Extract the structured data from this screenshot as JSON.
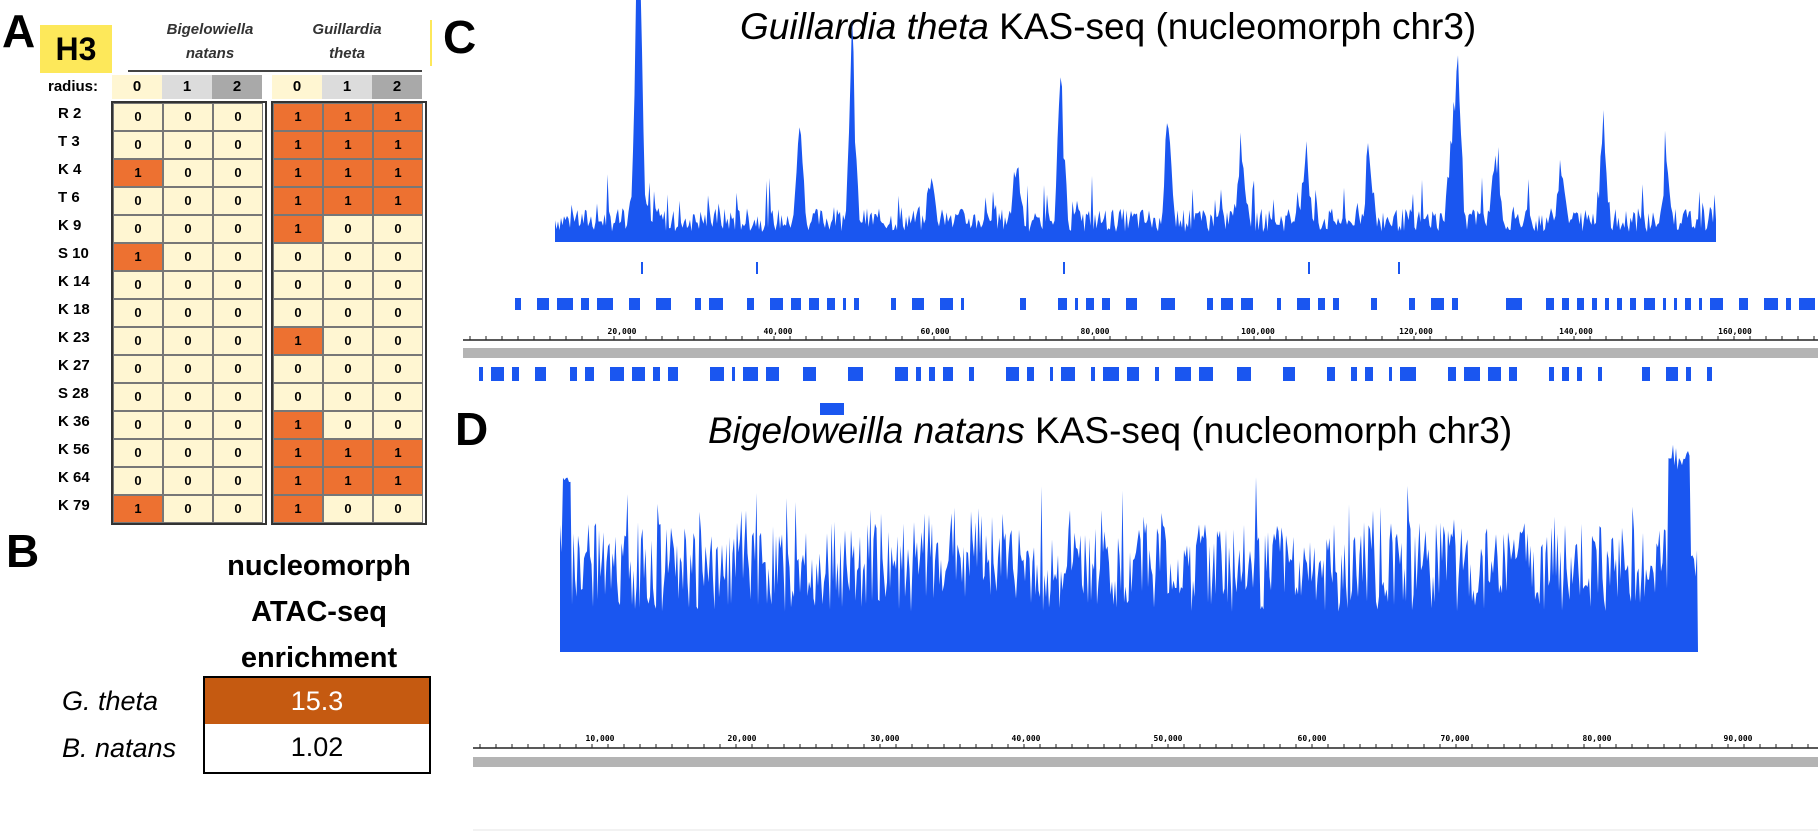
{
  "panels": {
    "a": "A",
    "b": "B",
    "c": "C",
    "d": "D"
  },
  "panel_a": {
    "badge": "H3",
    "species1": [
      "Bigelowiella",
      "natans"
    ],
    "species2": [
      "Guillardia",
      "theta"
    ],
    "radius_label": "radius:",
    "radius_values": [
      "0",
      "1",
      "2"
    ],
    "rows": [
      {
        "label": "R 2",
        "bn": [
          "0",
          "0",
          "0"
        ],
        "gt": [
          "1",
          "1",
          "1"
        ]
      },
      {
        "label": "T 3",
        "bn": [
          "0",
          "0",
          "0"
        ],
        "gt": [
          "1",
          "1",
          "1"
        ]
      },
      {
        "label": "K 4",
        "bn": [
          "1",
          "0",
          "0"
        ],
        "gt": [
          "1",
          "1",
          "1"
        ]
      },
      {
        "label": "T 6",
        "bn": [
          "0",
          "0",
          "0"
        ],
        "gt": [
          "1",
          "1",
          "1"
        ]
      },
      {
        "label": "K 9",
        "bn": [
          "0",
          "0",
          "0"
        ],
        "gt": [
          "1",
          "0",
          "0"
        ]
      },
      {
        "label": "S 10",
        "bn": [
          "1",
          "0",
          "0"
        ],
        "gt": [
          "0",
          "0",
          "0"
        ]
      },
      {
        "label": "K 14",
        "bn": [
          "0",
          "0",
          "0"
        ],
        "gt": [
          "0",
          "0",
          "0"
        ]
      },
      {
        "label": "K 18",
        "bn": [
          "0",
          "0",
          "0"
        ],
        "gt": [
          "0",
          "0",
          "0"
        ]
      },
      {
        "label": "K 23",
        "bn": [
          "0",
          "0",
          "0"
        ],
        "gt": [
          "1",
          "0",
          "0"
        ]
      },
      {
        "label": "K 27",
        "bn": [
          "0",
          "0",
          "0"
        ],
        "gt": [
          "0",
          "0",
          "0"
        ]
      },
      {
        "label": "S 28",
        "bn": [
          "0",
          "0",
          "0"
        ],
        "gt": [
          "0",
          "0",
          "0"
        ]
      },
      {
        "label": "K 36",
        "bn": [
          "0",
          "0",
          "0"
        ],
        "gt": [
          "1",
          "0",
          "0"
        ]
      },
      {
        "label": "K 56",
        "bn": [
          "0",
          "0",
          "0"
        ],
        "gt": [
          "1",
          "1",
          "1"
        ]
      },
      {
        "label": "K 64",
        "bn": [
          "0",
          "0",
          "0"
        ],
        "gt": [
          "1",
          "1",
          "1"
        ]
      },
      {
        "label": "K 79",
        "bn": [
          "1",
          "0",
          "0"
        ],
        "gt": [
          "1",
          "0",
          "0"
        ]
      }
    ]
  },
  "panel_b": {
    "header_lines": [
      "nucleomorph",
      "ATAC-seq",
      "enrichment"
    ],
    "rows": [
      {
        "species": "G. theta",
        "value": "15.3"
      },
      {
        "species": "B. natans",
        "value": "1.02"
      }
    ]
  },
  "panel_c": {
    "title_italic": "Guillardia theta",
    "title_rest": " KAS-seq (nucleomorph chr3)",
    "ticks": [
      "20,000",
      "40,000",
      "60,000",
      "80,000",
      "100,000",
      "120,000",
      "140,000",
      "160,000"
    ]
  },
  "panel_d": {
    "title_italic": "Bigeloweilla natans",
    "title_rest": " KAS-seq (nucleomorph chr3)",
    "ticks": [
      "10,000",
      "20,000",
      "30,000",
      "40,000",
      "50,000",
      "60,000",
      "70,000",
      "80,000",
      "90,000"
    ]
  },
  "colors": {
    "track": "#1a56f0",
    "heat_on": "#ed7131",
    "heat_off": "#fff6d2",
    "enrich_high": "#c55a11",
    "badge": "#fde85a"
  }
}
